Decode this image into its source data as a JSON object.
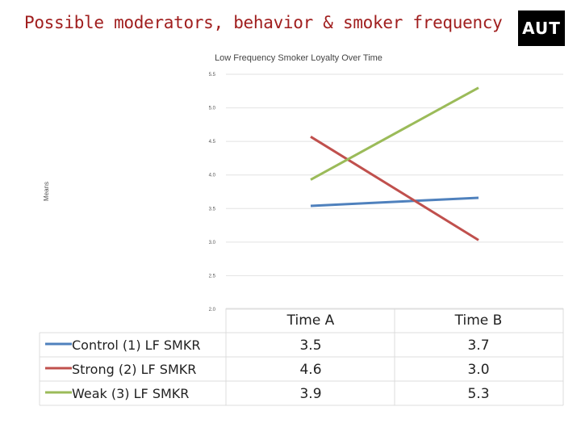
{
  "slide": {
    "title": "Possible moderators, behavior & smoker frequency",
    "logo_text": "AUT"
  },
  "chart_data": {
    "type": "line",
    "title": "Low Frequency Smoker Loyalty Over Time",
    "xlabel": "",
    "ylabel": "Means",
    "categories": [
      "Time A",
      "Time B"
    ],
    "ylim": [
      2.0,
      5.5
    ],
    "yticks": [
      "5.5",
      "5.0",
      "4.5",
      "4.0",
      "3.5",
      "3.0",
      "2.5",
      "2.0"
    ],
    "grid": true,
    "legend_position": "bottom-left (data table)",
    "series": [
      {
        "name": "Control (1) LF SMKR",
        "color": "#4f81bd",
        "values": [
          3.54,
          3.66
        ],
        "labels": [
          "3.5",
          "3.7"
        ]
      },
      {
        "name": "Strong (2) LF SMKR",
        "color": "#c0504d",
        "values": [
          4.57,
          3.03
        ],
        "labels": [
          "4.6",
          "3.0"
        ]
      },
      {
        "name": "Weak (3) LF SMKR",
        "color": "#9bbb59",
        "values": [
          3.93,
          5.3
        ],
        "labels": [
          "3.9",
          "5.3"
        ]
      }
    ]
  }
}
